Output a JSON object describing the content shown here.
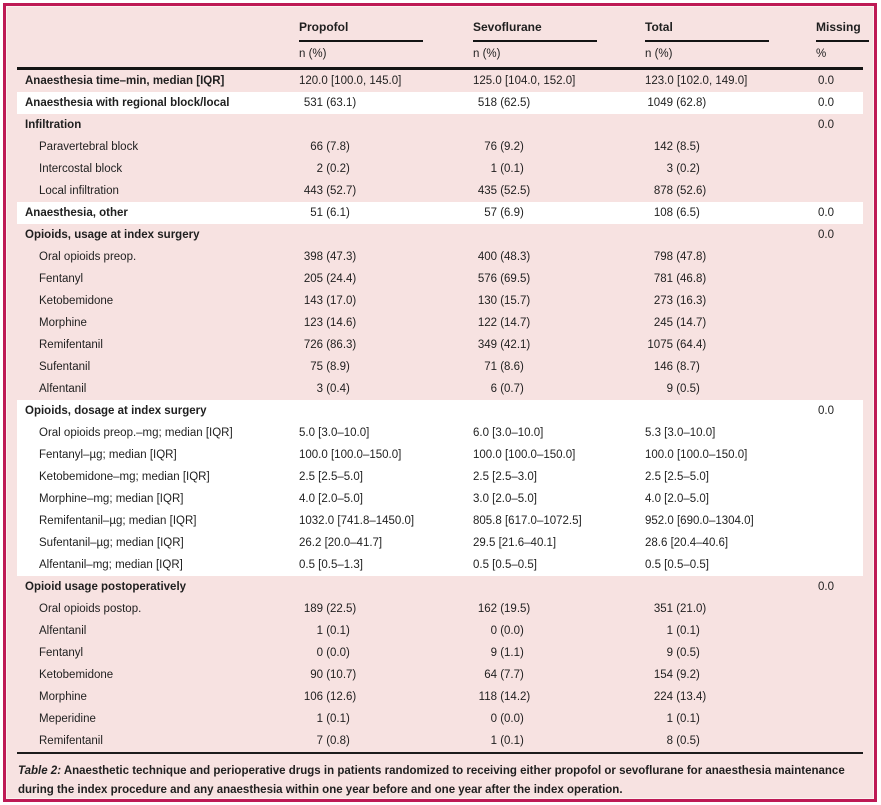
{
  "colors": {
    "background": "#f7e2e1",
    "border": "#be1a55",
    "rule": "#141414"
  },
  "table": {
    "columns": [
      {
        "title": "Propofol",
        "sub": "n (%)"
      },
      {
        "title": "Sevoflurane",
        "sub": "n (%)"
      },
      {
        "title": "Total",
        "sub": "n (%)"
      },
      {
        "title": "Missing",
        "sub": "%"
      }
    ],
    "rows": [
      {
        "label": "Anaesthesia time–min, median [IQR]",
        "bold": true,
        "shade": "pink",
        "type": "median",
        "values": [
          "120.0 [100.0, 145.0]",
          "125.0 [104.0, 152.0]",
          "123.0 [102.0, 149.0]"
        ],
        "missing": "0.0"
      },
      {
        "label": "Anaesthesia with regional block/local",
        "bold": true,
        "shade": "white",
        "type": "count",
        "values": [
          "531 (63.1)",
          "518 (62.5)",
          "1049 (62.8)"
        ],
        "missing": "0.0"
      },
      {
        "label": "Infiltration",
        "bold": true,
        "shade": "pink",
        "type": "count",
        "values": [
          "",
          "",
          ""
        ],
        "missing": "0.0"
      },
      {
        "label": "Paravertebral block",
        "indent": true,
        "shade": "pink",
        "type": "count",
        "values": [
          "66 (7.8)",
          "76 (9.2)",
          "142 (8.5)"
        ],
        "missing": ""
      },
      {
        "label": "Intercostal block",
        "indent": true,
        "shade": "pink",
        "type": "count",
        "values": [
          "2 (0.2)",
          "1 (0.1)",
          "3 (0.2)"
        ],
        "missing": ""
      },
      {
        "label": "Local infiltration",
        "indent": true,
        "shade": "pink",
        "type": "count",
        "values": [
          "443 (52.7)",
          "435 (52.5)",
          "878 (52.6)"
        ],
        "missing": ""
      },
      {
        "label": "Anaesthesia, other",
        "bold": true,
        "shade": "white",
        "type": "count",
        "values": [
          "51 (6.1)",
          "57 (6.9)",
          "108 (6.5)"
        ],
        "missing": "0.0"
      },
      {
        "label": "Opioids, usage at index surgery",
        "bold": true,
        "shade": "pink",
        "type": "count",
        "values": [
          "",
          "",
          ""
        ],
        "missing": "0.0"
      },
      {
        "label": "Oral opioids preop.",
        "indent": true,
        "shade": "pink",
        "type": "count",
        "values": [
          "398 (47.3)",
          "400 (48.3)",
          "798 (47.8)"
        ],
        "missing": ""
      },
      {
        "label": "Fentanyl",
        "indent": true,
        "shade": "pink",
        "type": "count",
        "values": [
          "205 (24.4)",
          "576 (69.5)",
          "781 (46.8)"
        ],
        "missing": ""
      },
      {
        "label": "Ketobemidone",
        "indent": true,
        "shade": "pink",
        "type": "count",
        "values": [
          "143 (17.0)",
          "130 (15.7)",
          "273 (16.3)"
        ],
        "missing": ""
      },
      {
        "label": "Morphine",
        "indent": true,
        "shade": "pink",
        "type": "count",
        "values": [
          "123 (14.6)",
          "122 (14.7)",
          "245 (14.7)"
        ],
        "missing": ""
      },
      {
        "label": "Remifentanil",
        "indent": true,
        "shade": "pink",
        "type": "count",
        "values": [
          "726 (86.3)",
          "349 (42.1)",
          "1075 (64.4)"
        ],
        "missing": ""
      },
      {
        "label": "Sufentanil",
        "indent": true,
        "shade": "pink",
        "type": "count",
        "values": [
          "75 (8.9)",
          "71 (8.6)",
          "146 (8.7)"
        ],
        "missing": ""
      },
      {
        "label": "Alfentanil",
        "indent": true,
        "shade": "pink",
        "type": "count",
        "values": [
          "3 (0.4)",
          "6 (0.7)",
          "9 (0.5)"
        ],
        "missing": ""
      },
      {
        "label": "Opioids, dosage at index surgery",
        "bold": true,
        "shade": "white",
        "type": "count",
        "values": [
          "",
          "",
          ""
        ],
        "missing": "0.0"
      },
      {
        "label": "Oral opioids preop.–mg; median [IQR]",
        "indent": true,
        "shade": "white",
        "type": "median",
        "values": [
          "5.0 [3.0–10.0]",
          "6.0 [3.0–10.0]",
          "5.3 [3.0–10.0]"
        ],
        "missing": ""
      },
      {
        "label": "Fentanyl–µg; median [IQR]",
        "indent": true,
        "shade": "white",
        "type": "median",
        "values": [
          "100.0 [100.0–150.0]",
          "100.0 [100.0–150.0]",
          "100.0 [100.0–150.0]"
        ],
        "missing": ""
      },
      {
        "label": "Ketobemidone–mg; median [IQR]",
        "indent": true,
        "shade": "white",
        "type": "median",
        "values": [
          "2.5 [2.5–5.0]",
          "2.5 [2.5–3.0]",
          "2.5 [2.5–5.0]"
        ],
        "missing": ""
      },
      {
        "label": "Morphine–mg; median [IQR]",
        "indent": true,
        "shade": "white",
        "type": "median",
        "values": [
          "4.0 [2.0–5.0]",
          "3.0 [2.0–5.0]",
          "4.0 [2.0–5.0]"
        ],
        "missing": ""
      },
      {
        "label": "Remifentanil–µg; median [IQR]",
        "indent": true,
        "shade": "white",
        "type": "median",
        "values": [
          "1032.0 [741.8–1450.0]",
          "805.8 [617.0–1072.5]",
          "952.0 [690.0–1304.0]"
        ],
        "missing": ""
      },
      {
        "label": "Sufentanil–µg; median [IQR]",
        "indent": true,
        "shade": "white",
        "type": "median",
        "values": [
          "26.2 [20.0–41.7]",
          "29.5 [21.6–40.1]",
          "28.6 [20.4–40.6]"
        ],
        "missing": ""
      },
      {
        "label": "Alfentanil–mg; median [IQR]",
        "indent": true,
        "shade": "white",
        "type": "median",
        "values": [
          "0.5 [0.5–1.3]",
          "0.5 [0.5–0.5]",
          "0.5 [0.5–0.5]"
        ],
        "missing": ""
      },
      {
        "label": "Opioid usage postoperatively",
        "bold": true,
        "shade": "pink",
        "type": "count",
        "values": [
          "",
          "",
          ""
        ],
        "missing": "0.0"
      },
      {
        "label": "Oral opioids postop.",
        "indent": true,
        "shade": "pink",
        "type": "count",
        "values": [
          "189 (22.5)",
          "162 (19.5)",
          "351 (21.0)"
        ],
        "missing": ""
      },
      {
        "label": "Alfentanil",
        "indent": true,
        "shade": "pink",
        "type": "count",
        "values": [
          "1 (0.1)",
          "0 (0.0)",
          "1 (0.1)"
        ],
        "missing": ""
      },
      {
        "label": "Fentanyl",
        "indent": true,
        "shade": "pink",
        "type": "count",
        "values": [
          "0 (0.0)",
          "9 (1.1)",
          "9 (0.5)"
        ],
        "missing": ""
      },
      {
        "label": "Ketobemidone",
        "indent": true,
        "shade": "pink",
        "type": "count",
        "values": [
          "90 (10.7)",
          "64 (7.7)",
          "154 (9.2)"
        ],
        "missing": ""
      },
      {
        "label": "Morphine",
        "indent": true,
        "shade": "pink",
        "type": "count",
        "values": [
          "106 (12.6)",
          "118 (14.2)",
          "224 (13.4)"
        ],
        "missing": ""
      },
      {
        "label": "Meperidine",
        "indent": true,
        "shade": "pink",
        "type": "count",
        "values": [
          "1 (0.1)",
          "0 (0.0)",
          "1 (0.1)"
        ],
        "missing": ""
      },
      {
        "label": "Remifentanil",
        "indent": true,
        "shade": "pink",
        "type": "count",
        "values": [
          "7 (0.8)",
          "1 (0.1)",
          "8 (0.5)"
        ],
        "missing": ""
      }
    ],
    "caption": {
      "label": "Table 2:",
      "text": "Anaesthetic technique and perioperative drugs in patients randomized to receiving either propofol or sevoflurane for anaesthesia maintenance during the index procedure and any anaesthesia within one year before and one year after the index operation."
    }
  }
}
